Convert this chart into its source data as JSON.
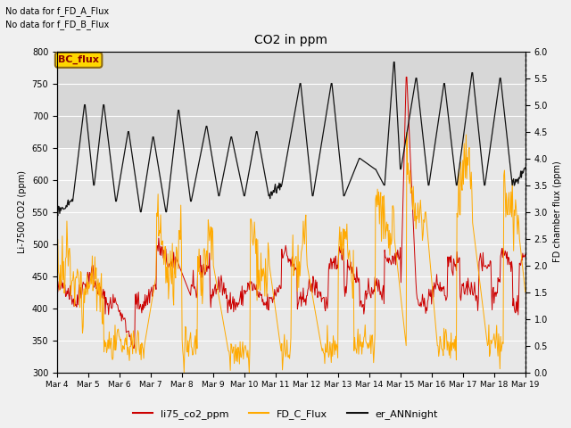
{
  "title": "CO2 in ppm",
  "ylabel_left": "Li-7500 CO2 (ppm)",
  "ylabel_right": "FD chamber flux (ppm)",
  "ylim_left": [
    300,
    800
  ],
  "ylim_right": [
    0.0,
    6.0
  ],
  "yticks_left": [
    300,
    350,
    400,
    450,
    500,
    550,
    600,
    650,
    700,
    750,
    800
  ],
  "yticks_right": [
    0.0,
    0.5,
    1.0,
    1.5,
    2.0,
    2.5,
    3.0,
    3.5,
    4.0,
    4.5,
    5.0,
    5.5,
    6.0
  ],
  "xtick_labels": [
    "Mar 4",
    "Mar 5",
    "Mar 6",
    "Mar 7",
    "Mar 8",
    "Mar 9",
    "Mar 10",
    "Mar 11",
    "Mar 12",
    "Mar 13",
    "Mar 14",
    "Mar 15",
    "Mar 16",
    "Mar 17",
    "Mar 18",
    "Mar 19"
  ],
  "annotation1": "No data for f_FD_A_Flux",
  "annotation2": "No data for f_FD_B_Flux",
  "bc_flux_label": "BC_flux",
  "legend_labels": [
    "li75_co2_ppm",
    "FD_C_Flux",
    "er_ANNnight"
  ],
  "line_colors": [
    "#cc0000",
    "#ffaa00",
    "#111111"
  ],
  "background_color": "#f0f0f0",
  "plot_bg_color": "#e8e8e8",
  "n_points": 720
}
